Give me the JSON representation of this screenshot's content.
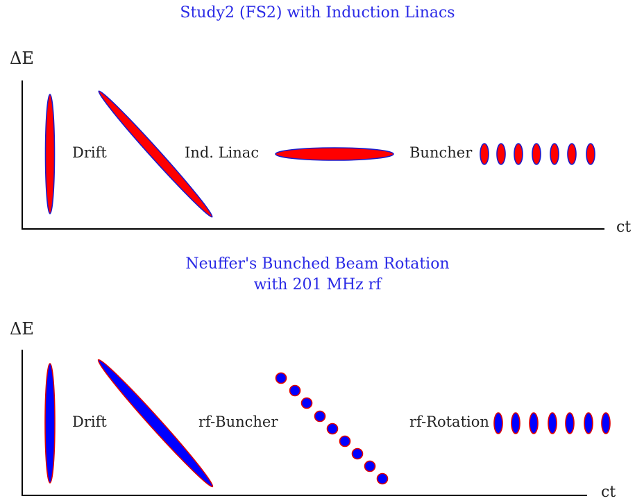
{
  "panel1": {
    "title": "Study2 (FS2) with Induction Linacs",
    "y_axis_label": "ΔE",
    "x_axis_label": "ct",
    "stage_labels": [
      "Drift",
      "Ind. Linac",
      "Buncher"
    ],
    "colors": {
      "fill": "#ff0000",
      "stroke": "#1a1acc"
    }
  },
  "panel2": {
    "title_line1": "Neuffer's Bunched Beam Rotation",
    "title_line2": "with 201 MHz rf",
    "y_axis_label": "ΔE",
    "x_axis_label": "ct",
    "stage_labels": [
      "Drift",
      "rf-Buncher",
      "rf-Rotation"
    ],
    "colors": {
      "fill": "#0000ff",
      "stroke": "#e00000"
    }
  },
  "title_color": "#2a2ae6"
}
